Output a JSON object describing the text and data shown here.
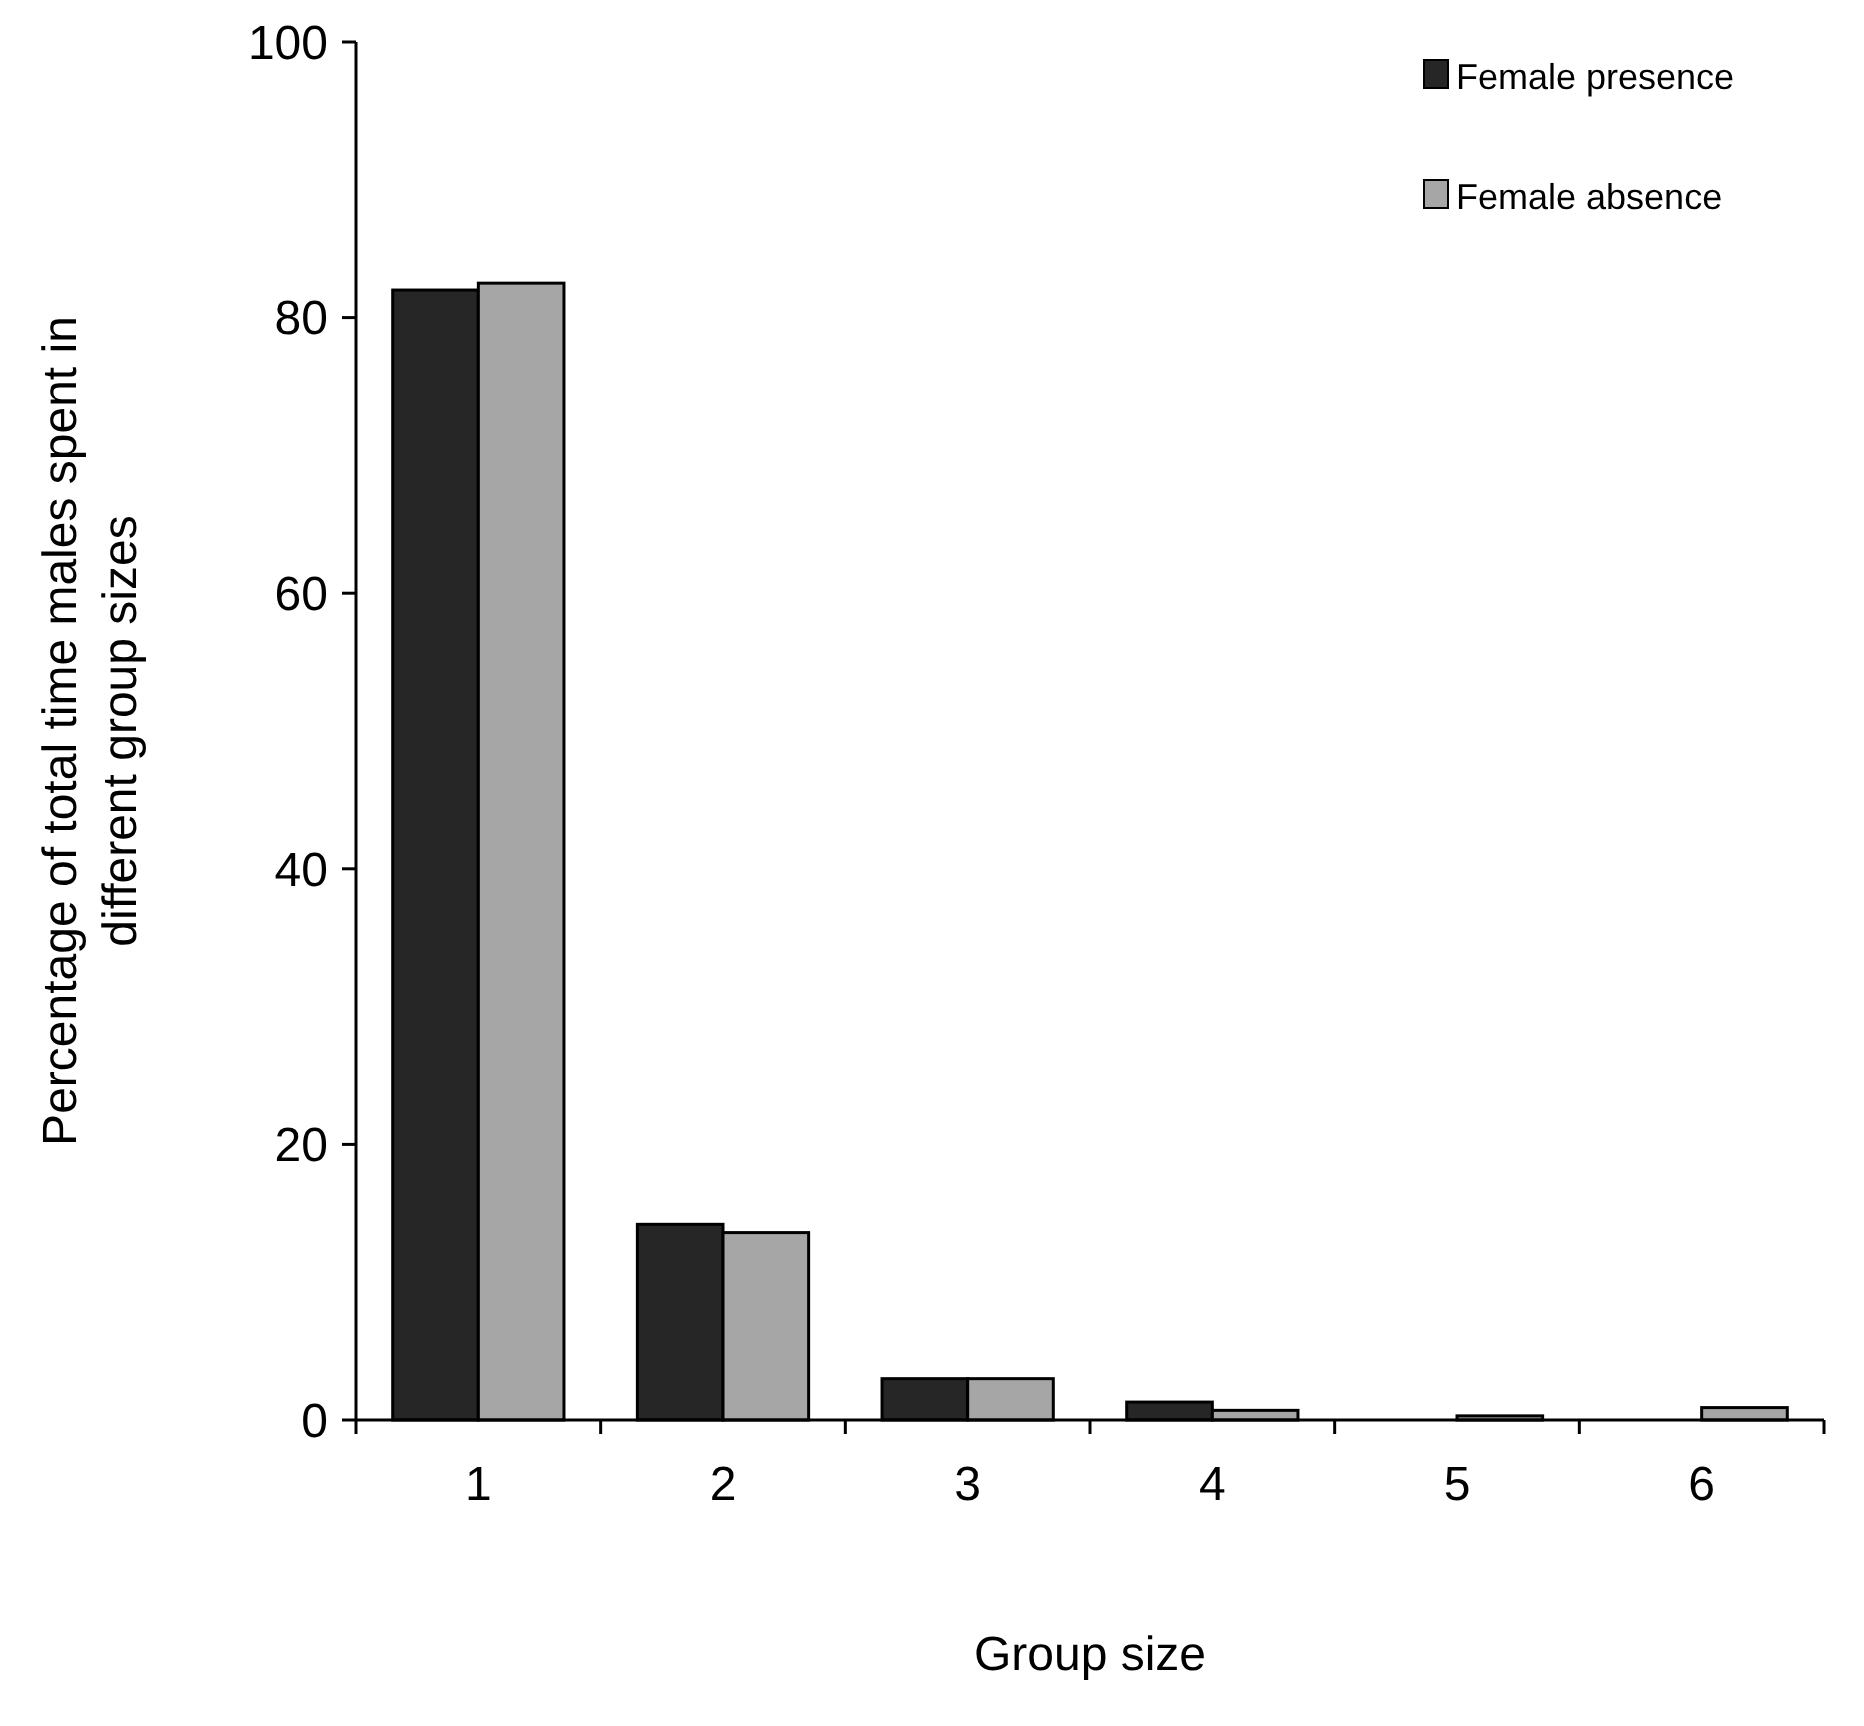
{
  "chart_data": {
    "type": "bar",
    "xlabel": "Group size",
    "ylabel": "Percentage of total time males spent in different  group sizes",
    "categories": [
      "1",
      "2",
      "3",
      "4",
      "5",
      "6"
    ],
    "series": [
      {
        "name": "Female presence",
        "color": "#262626",
        "values": [
          82,
          14.2,
          3,
          1.3,
          0,
          0
        ]
      },
      {
        "name": "Female absence",
        "color": "#a6a6a6",
        "values": [
          82.5,
          13.6,
          3,
          0.7,
          0.3,
          0.9
        ]
      }
    ],
    "ylim": [
      0,
      100
    ],
    "yticks": [
      0,
      20,
      40,
      60,
      80,
      100
    ],
    "grid": false,
    "legend": "top right"
  }
}
